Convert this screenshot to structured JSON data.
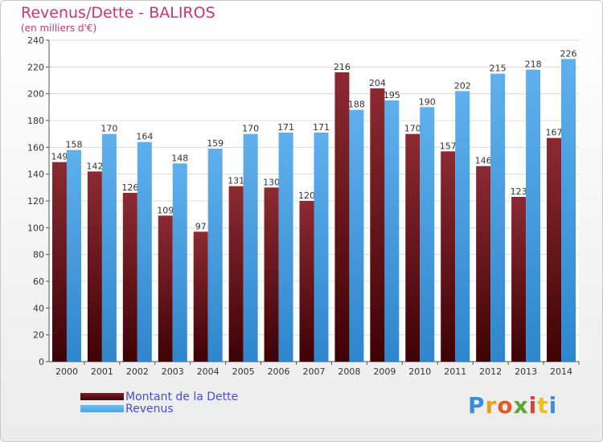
{
  "title": "Revenus/Dette - BALIROS",
  "subtitle": "(en milliers d'€)",
  "logo": "Proxiti",
  "colors": {
    "dette": "#7a1e26",
    "revenus": "#4ba6e6",
    "title": "#c0387a",
    "legend_text": "#4a4ae0"
  },
  "legend": [
    {
      "name": "Montant de la Dette"
    },
    {
      "name": "Revenus"
    }
  ],
  "chart_data": {
    "type": "bar",
    "title": "Revenus/Dette - BALIROS",
    "subtitle": "(en milliers d'€)",
    "categories": [
      "2000",
      "2001",
      "2002",
      "2003",
      "2004",
      "2005",
      "2006",
      "2007",
      "2008",
      "2009",
      "2010",
      "2011",
      "2012",
      "2013",
      "2014"
    ],
    "series": [
      {
        "name": "Montant de la Dette",
        "values": [
          149,
          142,
          126,
          109,
          97,
          131,
          130,
          120,
          216,
          204,
          170,
          157,
          146,
          123,
          167
        ]
      },
      {
        "name": "Revenus",
        "values": [
          158,
          170,
          164,
          148,
          159,
          170,
          171,
          171,
          188,
          195,
          190,
          202,
          215,
          218,
          226
        ]
      }
    ],
    "ylim": [
      0,
      240
    ],
    "yticks": [
      0,
      20,
      40,
      60,
      80,
      100,
      120,
      140,
      160,
      180,
      200,
      220,
      240
    ],
    "grid": true,
    "legend_position": "bottom-left"
  }
}
